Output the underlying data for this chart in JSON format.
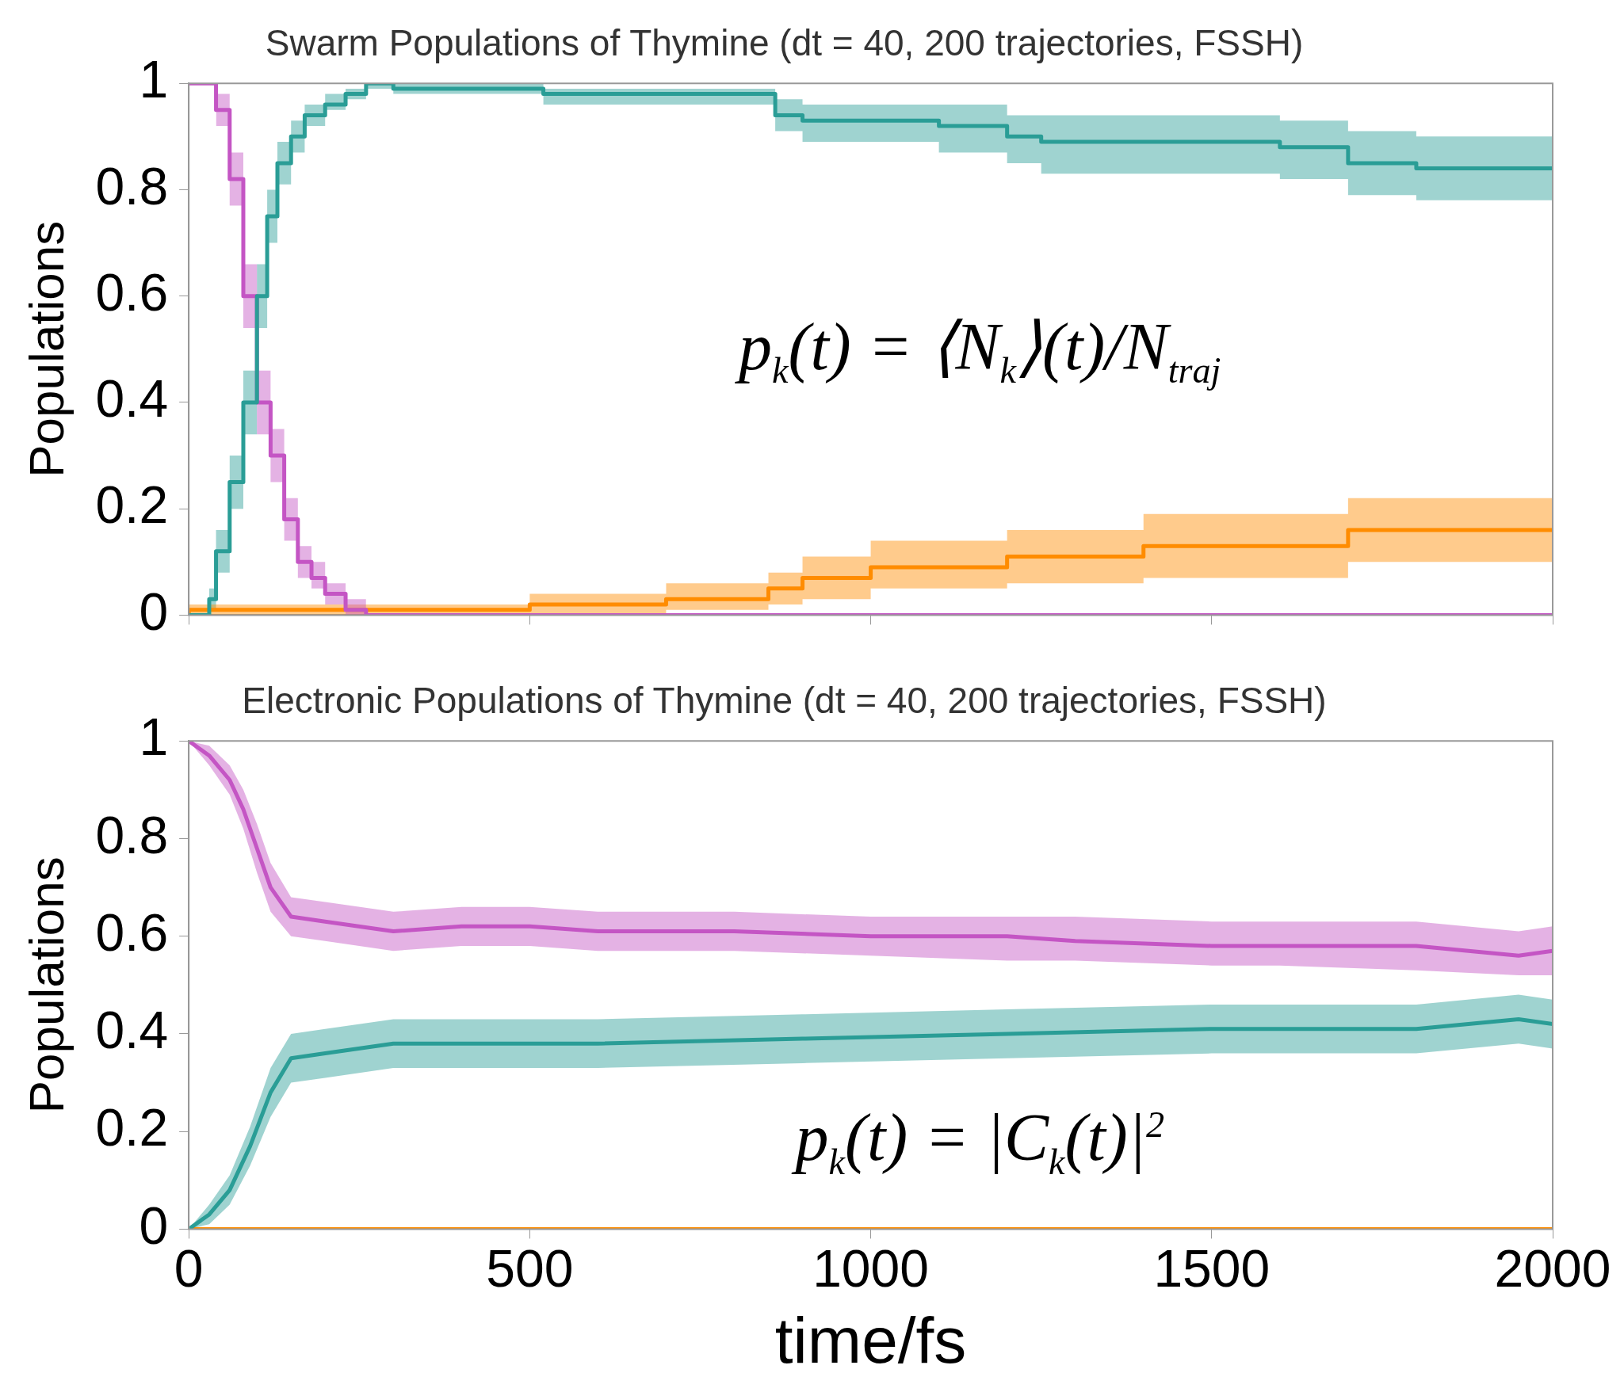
{
  "chart_data": [
    {
      "type": "step",
      "title": "Swarm Populations of Thymine (dt = 40, 200 trajectories, FSSH)",
      "ylabel": "Populations",
      "annotations": [
        "p$_{k}$(t) = ⟨N$_{k}$⟩(t)/N$_{traj}$"
      ],
      "xlim": [
        0,
        2000
      ],
      "xticks": [
        0,
        500,
        1000,
        1500,
        2000
      ],
      "ylim": [
        0,
        1
      ],
      "yticks": [
        0,
        0.2,
        0.4,
        0.6,
        0.8,
        1
      ],
      "tick_labels": "y",
      "grid": false,
      "legend": false,
      "series": [
        {
          "color": "#2a9d96",
          "x": [
            0,
            30,
            40,
            60,
            80,
            100,
            115,
            130,
            150,
            170,
            200,
            230,
            260,
            300,
            520,
            860,
            900,
            1100,
            1200,
            1250,
            1600,
            1700,
            1800,
            2000
          ],
          "values": [
            0,
            0,
            0.03,
            0.12,
            0.25,
            0.4,
            0.6,
            0.75,
            0.85,
            0.9,
            0.94,
            0.96,
            0.98,
            1,
            0.99,
            0.98,
            0.94,
            0.93,
            0.92,
            0.9,
            0.89,
            0.88,
            0.85,
            0.84
          ],
          "lower": [
            0,
            0,
            0.01,
            0.08,
            0.2,
            0.34,
            0.54,
            0.7,
            0.81,
            0.87,
            0.92,
            0.95,
            0.97,
            0.99,
            0.98,
            0.96,
            0.91,
            0.89,
            0.87,
            0.85,
            0.83,
            0.82,
            0.79,
            0.78
          ],
          "upper": [
            0,
            0,
            0.05,
            0.16,
            0.3,
            0.46,
            0.66,
            0.8,
            0.89,
            0.93,
            0.96,
            0.98,
            0.99,
            1,
            1,
            0.99,
            0.97,
            0.96,
            0.96,
            0.94,
            0.94,
            0.93,
            0.91,
            0.9
          ]
        },
        {
          "color": "#c455c4",
          "x": [
            0,
            40,
            60,
            80,
            100,
            120,
            140,
            160,
            180,
            200,
            230,
            260,
            280,
            2000
          ],
          "values": [
            1,
            1,
            0.95,
            0.82,
            0.6,
            0.4,
            0.3,
            0.18,
            0.1,
            0.07,
            0.04,
            0.01,
            0,
            0
          ],
          "lower": [
            null,
            1,
            0.92,
            0.77,
            0.54,
            0.34,
            0.25,
            0.14,
            0.07,
            0.05,
            0.02,
            0,
            null,
            null
          ],
          "upper": [
            null,
            1,
            0.98,
            0.87,
            0.66,
            0.46,
            0.35,
            0.22,
            0.13,
            0.1,
            0.06,
            0.03,
            null,
            null
          ]
        },
        {
          "color": "#ff8c00",
          "x": [
            0,
            30,
            500,
            700,
            850,
            900,
            1000,
            1200,
            1400,
            1700,
            1800,
            2000
          ],
          "values": [
            0,
            0.01,
            0.01,
            0.02,
            0.03,
            0.05,
            0.07,
            0.09,
            0.11,
            0.13,
            0.16,
            0.16
          ],
          "lower": [
            0,
            0,
            0,
            0,
            0.01,
            0.02,
            0.03,
            0.05,
            0.06,
            0.07,
            0.1,
            0.1
          ],
          "upper": [
            0,
            0.02,
            0.02,
            0.04,
            0.06,
            0.08,
            0.11,
            0.14,
            0.16,
            0.19,
            0.22,
            0.22
          ]
        }
      ]
    },
    {
      "type": "line",
      "title": "Electronic Populations of Thymine (dt = 40, 200 trajectories, FSSH)",
      "xlabel": "time/fs",
      "ylabel": "Populations",
      "annotations": [
        "p$_{k}$(t) = |C$_{k}$(t)|$^{2}$"
      ],
      "xlim": [
        0,
        2000
      ],
      "xticks": [
        0,
        500,
        1000,
        1500,
        2000
      ],
      "ylim": [
        0,
        1
      ],
      "yticks": [
        0,
        0.2,
        0.4,
        0.6,
        0.8,
        1
      ],
      "grid": false,
      "legend": false,
      "series": [
        {
          "color": "#c455c4",
          "x": [
            0,
            30,
            60,
            80,
            100,
            120,
            150,
            200,
            300,
            400,
            500,
            600,
            800,
            1000,
            1200,
            1300,
            1500,
            1600,
            1800,
            1950,
            2000
          ],
          "values": [
            1,
            0.97,
            0.92,
            0.86,
            0.78,
            0.7,
            0.64,
            0.63,
            0.61,
            0.62,
            0.62,
            0.61,
            0.61,
            0.6,
            0.6,
            0.59,
            0.58,
            0.58,
            0.58,
            0.56,
            0.57
          ],
          "lower": [
            1,
            0.95,
            0.89,
            0.82,
            0.73,
            0.65,
            0.6,
            0.59,
            0.57,
            0.58,
            0.58,
            0.57,
            0.57,
            0.56,
            0.55,
            0.55,
            0.54,
            0.54,
            0.53,
            0.52,
            0.52
          ],
          "upper": [
            1,
            0.99,
            0.95,
            0.9,
            0.83,
            0.75,
            0.68,
            0.67,
            0.65,
            0.66,
            0.66,
            0.65,
            0.65,
            0.64,
            0.64,
            0.64,
            0.63,
            0.63,
            0.63,
            0.61,
            0.62
          ]
        },
        {
          "color": "#2a9d96",
          "x": [
            0,
            30,
            60,
            90,
            120,
            150,
            200,
            300,
            400,
            600,
            900,
            1200,
            1500,
            1800,
            1950,
            2000
          ],
          "values": [
            0,
            0.03,
            0.08,
            0.17,
            0.28,
            0.35,
            0.36,
            0.38,
            0.38,
            0.38,
            0.39,
            0.4,
            0.41,
            0.41,
            0.43,
            0.42
          ],
          "lower": [
            0,
            0.01,
            0.05,
            0.13,
            0.23,
            0.3,
            0.31,
            0.33,
            0.33,
            0.33,
            0.34,
            0.35,
            0.36,
            0.36,
            0.38,
            0.37
          ],
          "upper": [
            0,
            0.05,
            0.11,
            0.21,
            0.33,
            0.4,
            0.41,
            0.43,
            0.43,
            0.43,
            0.44,
            0.45,
            0.46,
            0.46,
            0.48,
            0.47
          ]
        },
        {
          "color": "#ff8c00",
          "x": [
            0,
            2000
          ],
          "values": [
            0,
            0
          ]
        }
      ]
    }
  ]
}
